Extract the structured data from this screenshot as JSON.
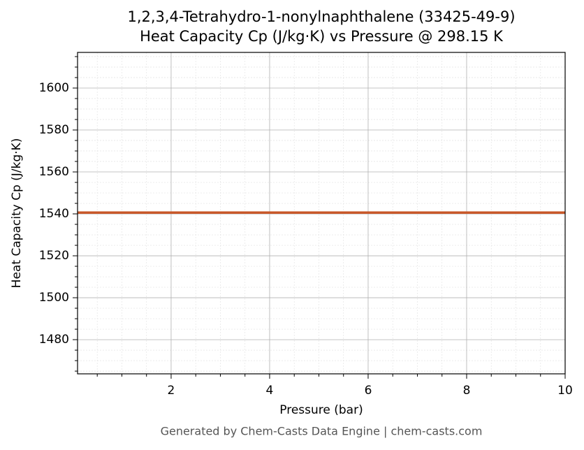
{
  "chart_data": {
    "type": "line",
    "title": "1,2,3,4-Tetrahydro-1-nonylnaphthalene (33425-49-9)",
    "subtitle": "Heat Capacity Cp (J/kg·K) vs Pressure @ 298.15 K",
    "x_label": "Pressure (bar)",
    "y_label": "Heat Capacity Cp (J/kg·K)",
    "footer": "Generated by Chem-Casts Data Engine | chem-casts.com",
    "x": [
      0.1,
      2,
      4,
      6,
      8,
      10
    ],
    "series": [
      {
        "name": "Cp",
        "color": "#c8582a",
        "values": [
          1540.6,
          1540.6,
          1540.6,
          1540.6,
          1540.6,
          1540.6
        ]
      }
    ],
    "xlim": [
      0.1,
      10
    ],
    "xticks": [
      2,
      4,
      6,
      8,
      10
    ],
    "xminorticks": [
      0.5,
      1,
      1.5,
      2.5,
      3,
      3.5,
      4.5,
      5,
      5.5,
      6.5,
      7,
      7.5,
      8.5,
      9,
      9.5
    ],
    "ylim": [
      1463.7,
      1617
    ],
    "yticks": [
      1480,
      1500,
      1520,
      1540,
      1560,
      1580,
      1600
    ],
    "yminorticks": [
      1465,
      1470,
      1475,
      1485,
      1490,
      1495,
      1505,
      1510,
      1515,
      1525,
      1530,
      1535,
      1545,
      1550,
      1555,
      1565,
      1570,
      1575,
      1585,
      1590,
      1595,
      1605,
      1610,
      1615
    ],
    "grid": true,
    "legend": false
  }
}
